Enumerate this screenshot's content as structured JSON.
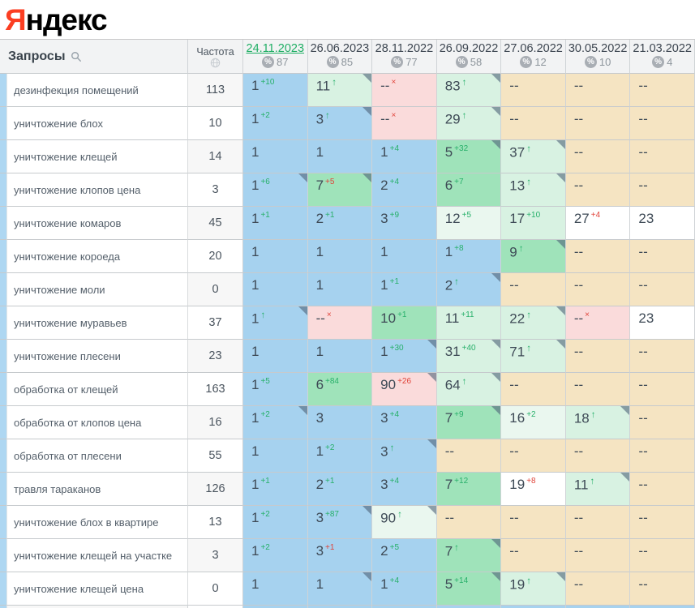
{
  "logo": {
    "first_letter": "Я",
    "rest": "ндекс"
  },
  "colors": {
    "accent_red": "#fb3e22",
    "active_date_green": "#1fae64",
    "change_up_green": "#27b06a",
    "change_down_red": "#e0443a",
    "cell_blue": "#a6d2ef",
    "cell_green": "#9fe3ba",
    "cell_mint": "#d8f2e2",
    "cell_palemint": "#eaf7ef",
    "cell_pink": "#fadbdb",
    "cell_tan": "#f5e4c2"
  },
  "table": {
    "queries_header": "Запросы",
    "frequency_header": "Частота",
    "icons": {
      "search": "search-icon",
      "globe": "globe-icon",
      "percent": "percent-icon"
    },
    "date_columns": [
      {
        "date": "24.11.2023",
        "percent": "87",
        "active": true
      },
      {
        "date": "26.06.2023",
        "percent": "85",
        "active": false
      },
      {
        "date": "28.11.2022",
        "percent": "77",
        "active": false
      },
      {
        "date": "26.09.2022",
        "percent": "58",
        "active": false
      },
      {
        "date": "27.06.2022",
        "percent": "12",
        "active": false
      },
      {
        "date": "30.05.2022",
        "percent": "10",
        "active": false
      },
      {
        "date": "21.03.2022",
        "percent": "4",
        "active": false
      }
    ],
    "rows": [
      {
        "keyword": "дезинфекция помещений",
        "frequency": "113",
        "cells": [
          {
            "value": "1",
            "sup": "+10",
            "supColor": "green",
            "bg": "blue"
          },
          {
            "value": "11",
            "sup": "↑",
            "supColor": "green",
            "bg": "mint",
            "marker": true
          },
          {
            "value": "--",
            "sup": "×",
            "supColor": "red",
            "bg": "pink"
          },
          {
            "value": "83",
            "sup": "↑",
            "supColor": "green",
            "bg": "mint",
            "marker": true
          },
          {
            "value": "--",
            "bg": "tan"
          },
          {
            "value": "--",
            "bg": "tan"
          },
          {
            "value": "--",
            "bg": "tan"
          }
        ]
      },
      {
        "keyword": "уничтожение блох",
        "frequency": "10",
        "cells": [
          {
            "value": "1",
            "sup": "+2",
            "supColor": "green",
            "bg": "blue"
          },
          {
            "value": "3",
            "sup": "↑",
            "supColor": "green",
            "bg": "blue",
            "marker": true
          },
          {
            "value": "--",
            "sup": "×",
            "supColor": "red",
            "bg": "pink"
          },
          {
            "value": "29",
            "sup": "↑",
            "supColor": "green",
            "bg": "mint",
            "marker": true
          },
          {
            "value": "--",
            "bg": "tan"
          },
          {
            "value": "--",
            "bg": "tan"
          },
          {
            "value": "--",
            "bg": "tan"
          }
        ]
      },
      {
        "keyword": "уничтожение клещей",
        "frequency": "14",
        "cells": [
          {
            "value": "1",
            "bg": "blue"
          },
          {
            "value": "1",
            "bg": "blue"
          },
          {
            "value": "1",
            "sup": "+4",
            "supColor": "green",
            "bg": "blue"
          },
          {
            "value": "5",
            "sup": "+32",
            "supColor": "green",
            "bg": "green",
            "marker": true
          },
          {
            "value": "37",
            "sup": "↑",
            "supColor": "green",
            "bg": "mint",
            "marker": true
          },
          {
            "value": "--",
            "bg": "tan"
          },
          {
            "value": "--",
            "bg": "tan"
          }
        ]
      },
      {
        "keyword": "уничтожение клопов цена",
        "frequency": "3",
        "cells": [
          {
            "value": "1",
            "sup": "+6",
            "supColor": "green",
            "bg": "blue",
            "marker": true
          },
          {
            "value": "7",
            "sup": "+5",
            "supColor": "red",
            "bg": "green",
            "marker": true
          },
          {
            "value": "2",
            "sup": "+4",
            "supColor": "green",
            "bg": "blue"
          },
          {
            "value": "6",
            "sup": "+7",
            "supColor": "green",
            "bg": "green"
          },
          {
            "value": "13",
            "sup": "↑",
            "supColor": "green",
            "bg": "mint",
            "marker": true
          },
          {
            "value": "--",
            "bg": "tan"
          },
          {
            "value": "--",
            "bg": "tan"
          }
        ]
      },
      {
        "keyword": "уничтожение комаров",
        "frequency": "45",
        "cells": [
          {
            "value": "1",
            "sup": "+1",
            "supColor": "green",
            "bg": "blue"
          },
          {
            "value": "2",
            "sup": "+1",
            "supColor": "green",
            "bg": "blue"
          },
          {
            "value": "3",
            "sup": "+9",
            "supColor": "green",
            "bg": "blue"
          },
          {
            "value": "12",
            "sup": "+5",
            "supColor": "green",
            "bg": "palemint"
          },
          {
            "value": "17",
            "sup": "+10",
            "supColor": "green",
            "bg": "mint"
          },
          {
            "value": "27",
            "sup": "+4",
            "supColor": "red",
            "bg": "white"
          },
          {
            "value": "23",
            "bg": "white"
          }
        ]
      },
      {
        "keyword": "уничтожение короеда",
        "frequency": "20",
        "cells": [
          {
            "value": "1",
            "bg": "blue"
          },
          {
            "value": "1",
            "bg": "blue"
          },
          {
            "value": "1",
            "bg": "blue"
          },
          {
            "value": "1",
            "sup": "+8",
            "supColor": "green",
            "bg": "blue"
          },
          {
            "value": "9",
            "sup": "↑",
            "supColor": "green",
            "bg": "green",
            "marker": true
          },
          {
            "value": "--",
            "bg": "tan"
          },
          {
            "value": "--",
            "bg": "tan"
          }
        ]
      },
      {
        "keyword": "уничтожение моли",
        "frequency": "0",
        "cells": [
          {
            "value": "1",
            "bg": "blue"
          },
          {
            "value": "1",
            "bg": "blue"
          },
          {
            "value": "1",
            "sup": "+1",
            "supColor": "green",
            "bg": "blue"
          },
          {
            "value": "2",
            "sup": "↑",
            "supColor": "green",
            "bg": "blue",
            "marker": true
          },
          {
            "value": "--",
            "bg": "tan"
          },
          {
            "value": "--",
            "bg": "tan"
          },
          {
            "value": "--",
            "bg": "tan"
          }
        ]
      },
      {
        "keyword": "уничтожение муравьев",
        "frequency": "37",
        "cells": [
          {
            "value": "1",
            "sup": "↑",
            "supColor": "green",
            "bg": "blue",
            "marker": true
          },
          {
            "value": "--",
            "sup": "×",
            "supColor": "red",
            "bg": "pink"
          },
          {
            "value": "10",
            "sup": "+1",
            "supColor": "green",
            "bg": "green"
          },
          {
            "value": "11",
            "sup": "+11",
            "supColor": "green",
            "bg": "mint"
          },
          {
            "value": "22",
            "sup": "↑",
            "supColor": "green",
            "bg": "mint",
            "marker": true
          },
          {
            "value": "--",
            "sup": "×",
            "supColor": "red",
            "bg": "pink"
          },
          {
            "value": "23",
            "bg": "white"
          }
        ]
      },
      {
        "keyword": "уничтожение плесени",
        "frequency": "23",
        "cells": [
          {
            "value": "1",
            "bg": "blue"
          },
          {
            "value": "1",
            "bg": "blue"
          },
          {
            "value": "1",
            "sup": "+30",
            "supColor": "green",
            "bg": "blue",
            "marker": true
          },
          {
            "value": "31",
            "sup": "+40",
            "supColor": "green",
            "bg": "mint",
            "marker": true
          },
          {
            "value": "71",
            "sup": "↑",
            "supColor": "green",
            "bg": "mint",
            "marker": true
          },
          {
            "value": "--",
            "bg": "tan"
          },
          {
            "value": "--",
            "bg": "tan"
          }
        ]
      },
      {
        "keyword": "обработка от клещей",
        "frequency": "163",
        "cells": [
          {
            "value": "1",
            "sup": "+5",
            "supColor": "green",
            "bg": "blue"
          },
          {
            "value": "6",
            "sup": "+84",
            "supColor": "green",
            "bg": "green"
          },
          {
            "value": "90",
            "sup": "+26",
            "supColor": "red",
            "bg": "pink",
            "marker": true
          },
          {
            "value": "64",
            "sup": "↑",
            "supColor": "green",
            "bg": "mint",
            "marker": true
          },
          {
            "value": "--",
            "bg": "tan"
          },
          {
            "value": "--",
            "bg": "tan"
          },
          {
            "value": "--",
            "bg": "tan"
          }
        ]
      },
      {
        "keyword": "обработка от клопов цена",
        "frequency": "16",
        "cells": [
          {
            "value": "1",
            "sup": "+2",
            "supColor": "green",
            "bg": "blue",
            "marker": true
          },
          {
            "value": "3",
            "bg": "blue"
          },
          {
            "value": "3",
            "sup": "+4",
            "supColor": "green",
            "bg": "blue"
          },
          {
            "value": "7",
            "sup": "+9",
            "supColor": "green",
            "bg": "green",
            "marker": true
          },
          {
            "value": "16",
            "sup": "+2",
            "supColor": "green",
            "bg": "palemint"
          },
          {
            "value": "18",
            "sup": "↑",
            "supColor": "green",
            "bg": "mint",
            "marker": true
          },
          {
            "value": "--",
            "bg": "tan"
          }
        ]
      },
      {
        "keyword": "обработка от плесени",
        "frequency": "55",
        "cells": [
          {
            "value": "1",
            "bg": "blue"
          },
          {
            "value": "1",
            "sup": "+2",
            "supColor": "green",
            "bg": "blue"
          },
          {
            "value": "3",
            "sup": "↑",
            "supColor": "green",
            "bg": "blue",
            "marker": true
          },
          {
            "value": "--",
            "bg": "tan"
          },
          {
            "value": "--",
            "bg": "tan"
          },
          {
            "value": "--",
            "bg": "tan"
          },
          {
            "value": "--",
            "bg": "tan"
          }
        ]
      },
      {
        "keyword": "травля тараканов",
        "frequency": "126",
        "cells": [
          {
            "value": "1",
            "sup": "+1",
            "supColor": "green",
            "bg": "blue"
          },
          {
            "value": "2",
            "sup": "+1",
            "supColor": "green",
            "bg": "blue"
          },
          {
            "value": "3",
            "sup": "+4",
            "supColor": "green",
            "bg": "blue"
          },
          {
            "value": "7",
            "sup": "+12",
            "supColor": "green",
            "bg": "green"
          },
          {
            "value": "19",
            "sup": "+8",
            "supColor": "red",
            "bg": "white"
          },
          {
            "value": "11",
            "sup": "↑",
            "supColor": "green",
            "bg": "mint",
            "marker": true
          },
          {
            "value": "--",
            "bg": "tan"
          }
        ]
      },
      {
        "keyword": "уничтожение блох в квартире",
        "frequency": "13",
        "cells": [
          {
            "value": "1",
            "sup": "+2",
            "supColor": "green",
            "bg": "blue"
          },
          {
            "value": "3",
            "sup": "+87",
            "supColor": "green",
            "bg": "blue",
            "marker": true
          },
          {
            "value": "90",
            "sup": "↑",
            "supColor": "green",
            "bg": "palemint",
            "marker": true
          },
          {
            "value": "--",
            "bg": "tan"
          },
          {
            "value": "--",
            "bg": "tan"
          },
          {
            "value": "--",
            "bg": "tan"
          },
          {
            "value": "--",
            "bg": "tan"
          }
        ]
      },
      {
        "keyword": "уничтожение клещей на участке",
        "frequency": "3",
        "cells": [
          {
            "value": "1",
            "sup": "+2",
            "supColor": "green",
            "bg": "blue"
          },
          {
            "value": "3",
            "sup": "+1",
            "supColor": "red",
            "bg": "blue"
          },
          {
            "value": "2",
            "sup": "+5",
            "supColor": "green",
            "bg": "blue"
          },
          {
            "value": "7",
            "sup": "↑",
            "supColor": "green",
            "bg": "green",
            "marker": true
          },
          {
            "value": "--",
            "bg": "tan"
          },
          {
            "value": "--",
            "bg": "tan"
          },
          {
            "value": "--",
            "bg": "tan"
          }
        ]
      },
      {
        "keyword": "уничтожение клещей цена",
        "frequency": "0",
        "cells": [
          {
            "value": "1",
            "bg": "blue"
          },
          {
            "value": "1",
            "bg": "blue",
            "marker": true
          },
          {
            "value": "1",
            "sup": "+4",
            "supColor": "green",
            "bg": "blue"
          },
          {
            "value": "5",
            "sup": "+14",
            "supColor": "green",
            "bg": "green",
            "marker": true
          },
          {
            "value": "19",
            "sup": "↑",
            "supColor": "green",
            "bg": "mint",
            "marker": true
          },
          {
            "value": "--",
            "bg": "tan"
          },
          {
            "value": "--",
            "bg": "tan"
          }
        ]
      }
    ]
  }
}
